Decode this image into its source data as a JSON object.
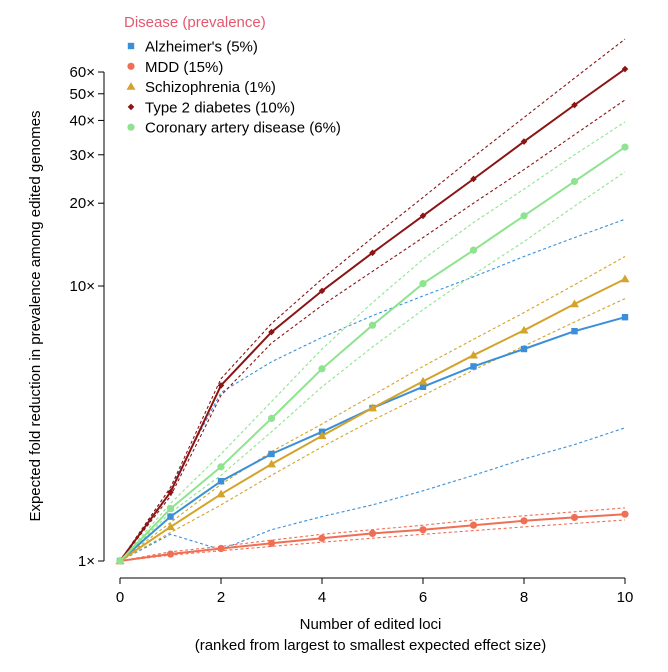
{
  "chart_data": {
    "type": "line",
    "xlabel": "Number of edited loci",
    "xlabel_sub": "(ranked from largest to smallest expected effect size)",
    "ylabel": "Expected fold reduction in prevalence among edited genomes",
    "y_scale": "log",
    "xlim": [
      0,
      10
    ],
    "ylim": [
      1,
      60
    ],
    "x_ticks": [
      0,
      2,
      4,
      6,
      8,
      10
    ],
    "y_ticks": [
      {
        "value": 1,
        "label": "1×"
      },
      {
        "value": 10,
        "label": "10×"
      },
      {
        "value": 20,
        "label": "20×"
      },
      {
        "value": 30,
        "label": "30×"
      },
      {
        "value": 40,
        "label": "40×"
      },
      {
        "value": 50,
        "label": "50×"
      },
      {
        "value": 60,
        "label": "60×"
      }
    ],
    "grid": false,
    "legend_title": "Disease (prevalence)",
    "legend_title_color": "#e4586e",
    "legend_position": "top-left",
    "x": [
      0,
      1,
      2,
      3,
      4,
      5,
      6,
      7,
      8,
      9,
      10
    ],
    "series": [
      {
        "name": "Alzheimer's (5%)",
        "color": "#3a8fd8",
        "marker": "square",
        "values": [
          1,
          1.45,
          1.95,
          2.45,
          2.95,
          3.6,
          4.3,
          5.1,
          5.9,
          6.85,
          7.7
        ],
        "lower": [
          1,
          1.25,
          1.1,
          1.3,
          1.45,
          1.6,
          1.8,
          2.05,
          2.35,
          2.65,
          3.05
        ],
        "upper": [
          1,
          1.85,
          4.1,
          5.3,
          6.5,
          7.8,
          9.2,
          10.8,
          12.8,
          15.0,
          17.5
        ]
      },
      {
        "name": "MDD (15%)",
        "color": "#ef6f55",
        "marker": "circle",
        "values": [
          1,
          1.06,
          1.11,
          1.16,
          1.21,
          1.26,
          1.3,
          1.35,
          1.4,
          1.44,
          1.48
        ],
        "lower": [
          1,
          1.05,
          1.09,
          1.13,
          1.17,
          1.21,
          1.25,
          1.29,
          1.33,
          1.37,
          1.41
        ],
        "upper": [
          1,
          1.08,
          1.13,
          1.19,
          1.25,
          1.3,
          1.35,
          1.41,
          1.46,
          1.51,
          1.56
        ]
      },
      {
        "name": "Schizophrenia (1%)",
        "color": "#d3a32b",
        "marker": "triangle",
        "values": [
          1,
          1.33,
          1.75,
          2.25,
          2.85,
          3.6,
          4.5,
          5.6,
          6.9,
          8.6,
          10.6
        ],
        "lower": [
          1,
          1.27,
          1.6,
          2.05,
          2.6,
          3.25,
          4.0,
          4.95,
          6.05,
          7.4,
          9.0
        ],
        "upper": [
          1,
          1.38,
          1.9,
          2.5,
          3.15,
          4.0,
          5.1,
          6.4,
          8.0,
          10.1,
          12.8
        ]
      },
      {
        "name": "Type 2 diabetes (10%)",
        "color": "#8b1414",
        "marker": "diamond",
        "values": [
          1,
          1.78,
          4.35,
          6.8,
          9.6,
          13.2,
          18.0,
          24.5,
          33.5,
          45.5,
          61.5
        ],
        "lower": [
          1,
          1.72,
          4.0,
          6.2,
          8.5,
          11.3,
          15.0,
          20.0,
          26.5,
          35.5,
          47.5
        ],
        "upper": [
          1,
          1.85,
          4.6,
          7.3,
          10.6,
          15.0,
          21.0,
          29.5,
          41.0,
          57.0,
          79.0
        ]
      },
      {
        "name": "Coronary artery disease (6%)",
        "color": "#8ee48e",
        "marker": "circle",
        "values": [
          1,
          1.55,
          2.2,
          3.3,
          5.0,
          7.2,
          10.2,
          13.5,
          18.0,
          24.0,
          32.0
        ],
        "lower": [
          1,
          1.5,
          2.05,
          2.95,
          4.3,
          6.0,
          8.2,
          11.0,
          14.5,
          19.5,
          26.0
        ],
        "upper": [
          1,
          1.62,
          2.45,
          3.8,
          5.9,
          8.7,
          12.5,
          17.0,
          22.5,
          30.0,
          39.5
        ]
      }
    ]
  }
}
